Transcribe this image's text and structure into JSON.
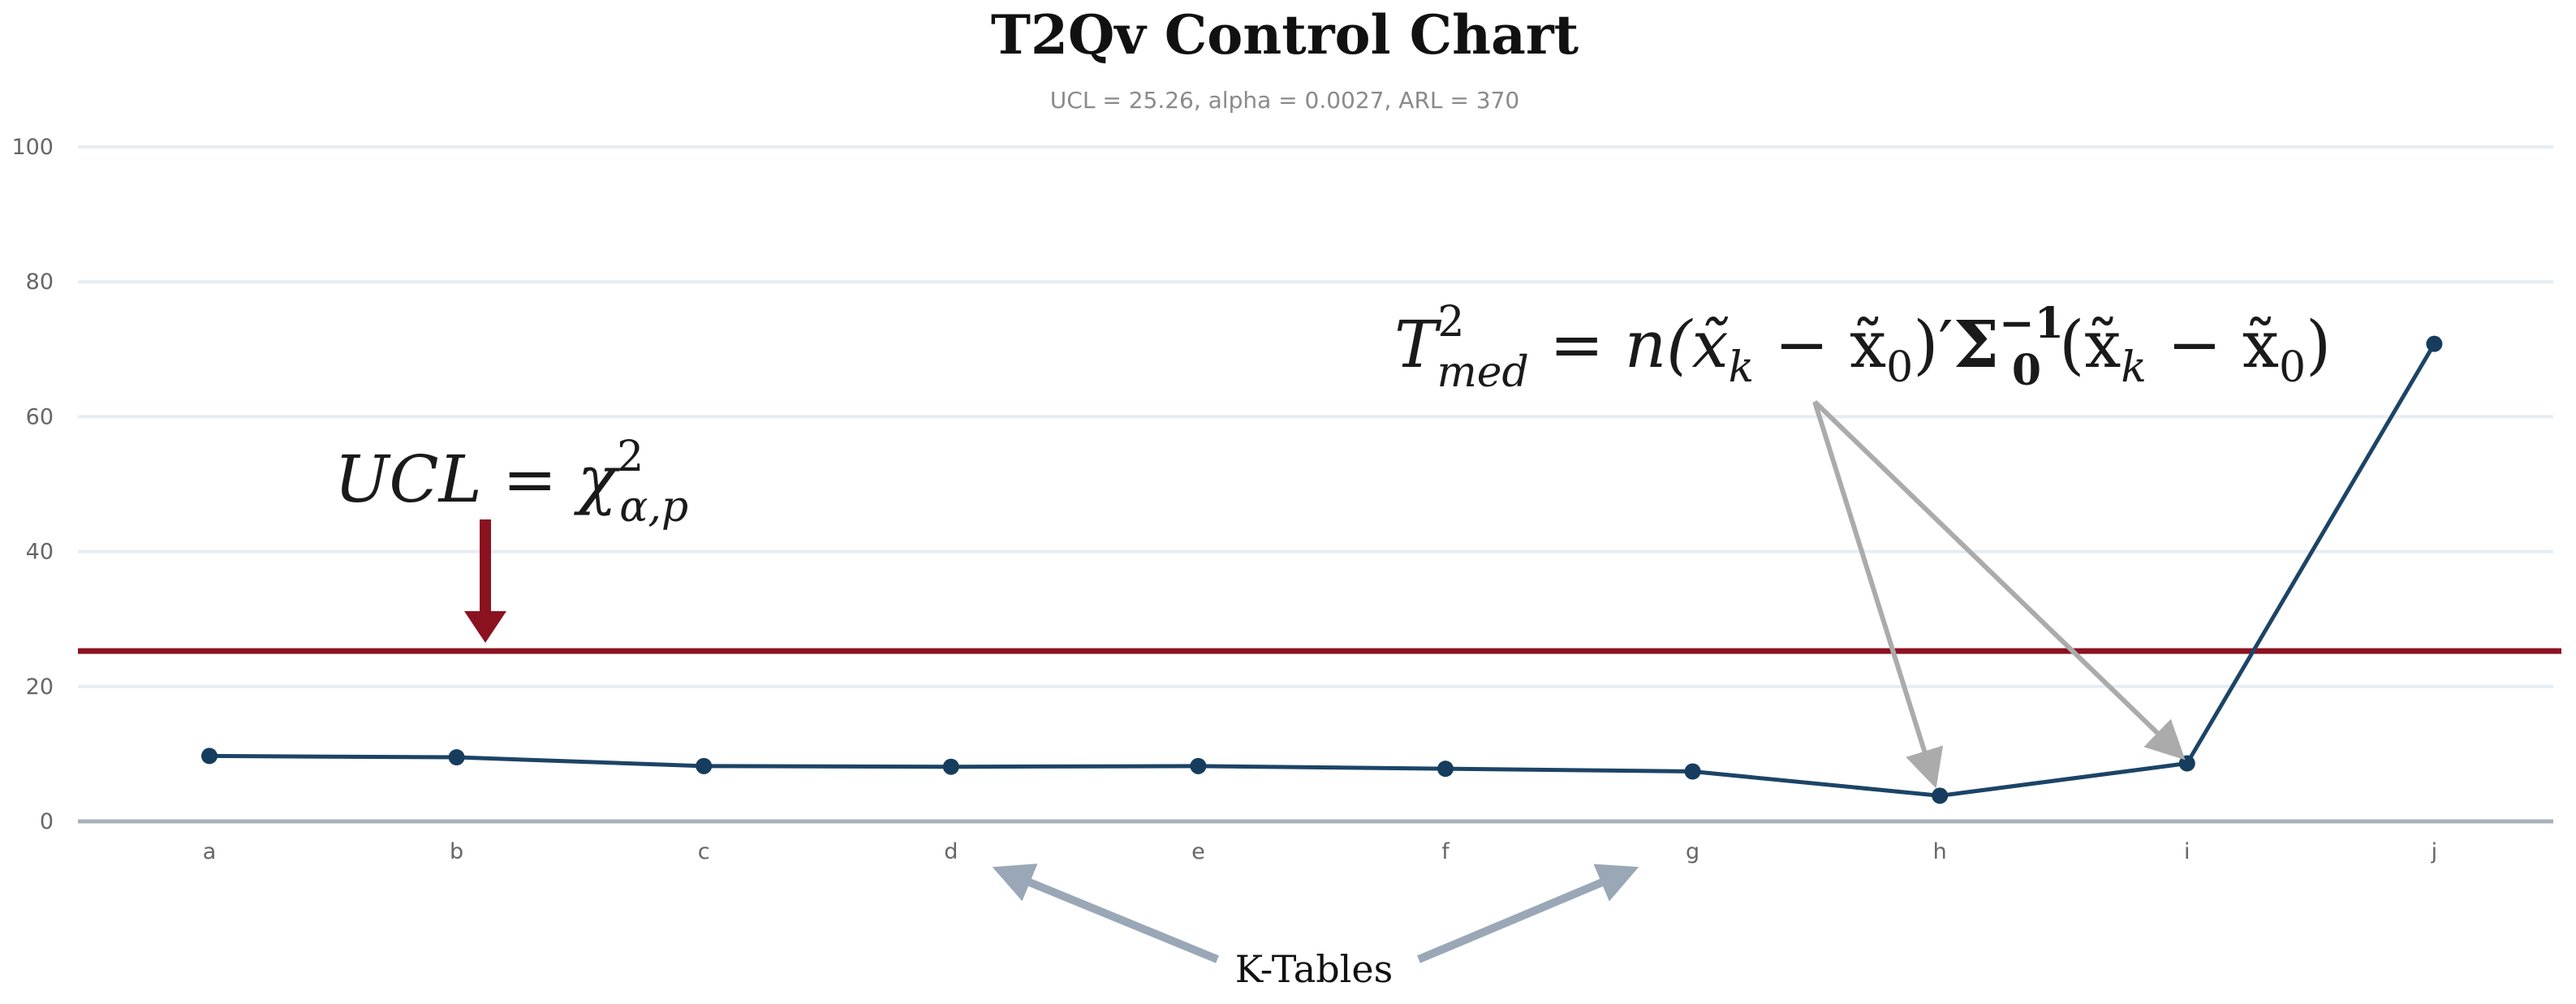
{
  "chart_data": {
    "type": "line",
    "title": "T2Qv Control Chart",
    "subtitle": "UCL = 25.26, alpha = 0.0027, ARL = 370",
    "categories": [
      "a",
      "b",
      "c",
      "d",
      "e",
      "f",
      "g",
      "h",
      "i",
      "j"
    ],
    "series": [
      {
        "name": "T2med",
        "values": [
          9.7,
          9.5,
          8.2,
          8.1,
          8.2,
          7.8,
          7.4,
          3.8,
          8.6,
          70.8
        ]
      }
    ],
    "ucl": 25.26,
    "ylim": [
      0,
      100
    ],
    "yticks": [
      0,
      20,
      40,
      60,
      80,
      100
    ],
    "xlabel": "",
    "ylabel": "",
    "colors": {
      "series": "#1c4466",
      "ucl": "#8b1220",
      "grid": "#e6edf3",
      "arrow_gray": "#ababab",
      "arrow_blue": "#9aa7b6"
    },
    "annotations": {
      "ucl_formula": {
        "lhs": "UCL = ",
        "chi": "χ",
        "sup": "2",
        "sub": "α,p"
      },
      "t2_formula": {
        "t": "T",
        "t_sup": "2",
        "t_sub": "med",
        "rest": " = n(x̃",
        "k1": "k",
        "minus1": " − x̃",
        "zero1": "0",
        "paren_prime": ")′",
        "sigma": "Σ",
        "sigma_sub": "0",
        "sigma_sup": "−1",
        "open2": "(x̃",
        "k2": "k",
        "minus2": " − x̃",
        "zero2": "0",
        "close2": ")"
      },
      "k_tables_label": "K-Tables"
    }
  }
}
